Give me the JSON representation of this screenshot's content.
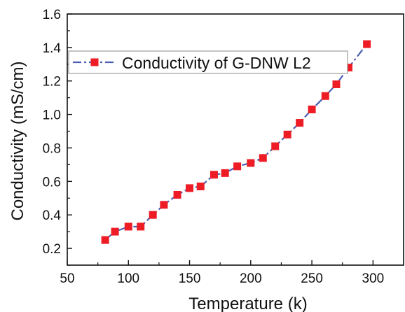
{
  "chart_data": {
    "type": "line",
    "title": "",
    "xlabel": "Temperature (k)",
    "ylabel": "Conductivity (mS/cm)",
    "xlim": [
      50,
      325
    ],
    "ylim": [
      0.1,
      1.6
    ],
    "x_ticks": [
      50,
      100,
      150,
      200,
      250,
      300
    ],
    "y_ticks": [
      0.2,
      0.4,
      0.6,
      0.8,
      1.0,
      1.2,
      1.4,
      1.6
    ],
    "x_tick_labels": [
      "50",
      "100",
      "150",
      "200",
      "250",
      "300"
    ],
    "y_tick_labels": [
      "0.2",
      "0.4",
      "0.6",
      "0.8",
      "1.0",
      "1.2",
      "1.4",
      "1.6"
    ],
    "grid": false,
    "legend_position": "top-left",
    "series": [
      {
        "name": "Conductivity of G-DNW L2",
        "line_color": "#4a5fb5",
        "line_style": "dash-dot",
        "marker": "square",
        "marker_color": "#ee1c25",
        "x": [
          81,
          89,
          100,
          110,
          120,
          129,
          140,
          150,
          159,
          170,
          179,
          189,
          200,
          210,
          220,
          230,
          240,
          250,
          261,
          270,
          280,
          295
        ],
        "y": [
          0.25,
          0.3,
          0.33,
          0.33,
          0.4,
          0.46,
          0.52,
          0.56,
          0.57,
          0.64,
          0.65,
          0.69,
          0.71,
          0.74,
          0.81,
          0.88,
          0.95,
          1.03,
          1.11,
          1.18,
          1.28,
          1.42
        ]
      }
    ]
  }
}
